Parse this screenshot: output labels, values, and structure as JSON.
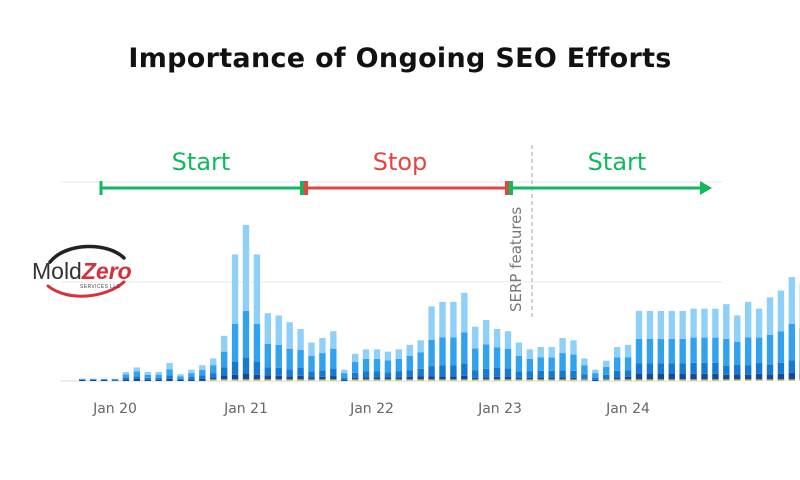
{
  "page": {
    "title": "Importance of Ongoing SEO Efforts"
  },
  "logo": {
    "word1": "Mold",
    "word2": "Zero",
    "subtitle": "SERVICES LLC"
  },
  "colors": {
    "start": "#10b95c",
    "stop": "#e5453f",
    "bar_light": "#8fd0f8",
    "bar_mid": "#32a2ec",
    "bar_dark": "#1679d2",
    "bar_navy": "#144a9c",
    "bar_yellow": "#e6c75e",
    "bar_green": "#76c45a",
    "grid": "#e5e8ec",
    "tick": "#666666"
  },
  "chart_data": {
    "type": "bar",
    "stacked": true,
    "x_tick_labels": [
      "Jan 20",
      "Jan 21",
      "Jan 22",
      "Jan 23",
      "Jan 24"
    ],
    "annotations": [
      {
        "name": "phase-start-1",
        "text": "Start",
        "kind": "start",
        "from_month": 3,
        "to_month": 27
      },
      {
        "name": "phase-stop",
        "text": "Stop",
        "kind": "stop",
        "from_month": 27,
        "to_month": 51
      },
      {
        "name": "phase-start-2",
        "text": "Start",
        "kind": "start",
        "from_month": 51,
        "to_month": 76
      }
    ],
    "event_line": {
      "text": "SERP features",
      "month": 54
    },
    "grid": true,
    "ylim": [
      0,
      100
    ],
    "series_names": [
      "light",
      "mid",
      "dark",
      "navy"
    ],
    "values": [
      1,
      1,
      1,
      1,
      4,
      6,
      4,
      4,
      8,
      3,
      5,
      7,
      10,
      20,
      56,
      69,
      56,
      30,
      29,
      26,
      23,
      17,
      19,
      22,
      5,
      12,
      14,
      14,
      13,
      14,
      16,
      18,
      33,
      35,
      35,
      39,
      24,
      27,
      23,
      22,
      17,
      14,
      15,
      15,
      19,
      18,
      10,
      5,
      9,
      15,
      16,
      31,
      31,
      31,
      31,
      31,
      32,
      32,
      32,
      34,
      29,
      35,
      32,
      37,
      40,
      46,
      43,
      45,
      46,
      49,
      52,
      52,
      55,
      55
    ],
    "splits": {
      "light": [
        0.05,
        0.05,
        0.05,
        0.1,
        0.25,
        0.3,
        0.3,
        0.3,
        0.35,
        0.3,
        0.3,
        0.3,
        0.3,
        0.35,
        0.55,
        0.55,
        0.55,
        0.45,
        0.45,
        0.45,
        0.4,
        0.35,
        0.35,
        0.35,
        0.3,
        0.3,
        0.3,
        0.3,
        0.3,
        0.3,
        0.3,
        0.3,
        0.45,
        0.45,
        0.45,
        0.45,
        0.4,
        0.4,
        0.35,
        0.35,
        0.35,
        0.3,
        0.3,
        0.3,
        0.35,
        0.35,
        0.3,
        0.3,
        0.3,
        0.3,
        0.35,
        0.4,
        0.4,
        0.4,
        0.4,
        0.4,
        0.4,
        0.4,
        0.4,
        0.45,
        0.4,
        0.45,
        0.4,
        0.45,
        0.45,
        0.45,
        0.45,
        0.45,
        0.45,
        0.45,
        0.4,
        0.4,
        0.4,
        0.4
      ],
      "mid": [
        0.2,
        0.2,
        0.2,
        0.3,
        0.35,
        0.35,
        0.35,
        0.35,
        0.35,
        0.35,
        0.35,
        0.35,
        0.35,
        0.35,
        0.3,
        0.3,
        0.3,
        0.35,
        0.35,
        0.35,
        0.35,
        0.4,
        0.4,
        0.4,
        0.4,
        0.4,
        0.4,
        0.4,
        0.4,
        0.4,
        0.4,
        0.4,
        0.35,
        0.35,
        0.35,
        0.35,
        0.4,
        0.4,
        0.4,
        0.4,
        0.4,
        0.4,
        0.4,
        0.4,
        0.4,
        0.4,
        0.4,
        0.4,
        0.4,
        0.4,
        0.35,
        0.35,
        0.35,
        0.35,
        0.35,
        0.35,
        0.35,
        0.35,
        0.35,
        0.35,
        0.35,
        0.35,
        0.35,
        0.35,
        0.35,
        0.35,
        0.35,
        0.35,
        0.35,
        0.35,
        0.4,
        0.4,
        0.4,
        0.4
      ],
      "dark": [
        0.25,
        0.25,
        0.25,
        0.25,
        0.2,
        0.2,
        0.2,
        0.2,
        0.18,
        0.2,
        0.2,
        0.2,
        0.2,
        0.18,
        0.1,
        0.1,
        0.1,
        0.12,
        0.12,
        0.12,
        0.15,
        0.15,
        0.15,
        0.15,
        0.2,
        0.18,
        0.18,
        0.18,
        0.18,
        0.18,
        0.18,
        0.18,
        0.14,
        0.14,
        0.14,
        0.14,
        0.14,
        0.14,
        0.17,
        0.17,
        0.17,
        0.2,
        0.2,
        0.2,
        0.17,
        0.17,
        0.2,
        0.2,
        0.2,
        0.2,
        0.18,
        0.15,
        0.15,
        0.15,
        0.15,
        0.15,
        0.15,
        0.15,
        0.15,
        0.12,
        0.15,
        0.12,
        0.15,
        0.12,
        0.12,
        0.12,
        0.12,
        0.12,
        0.12,
        0.12,
        0.12,
        0.12,
        0.12,
        0.12
      ],
      "navy": [
        0.5,
        0.5,
        0.5,
        0.35,
        0.2,
        0.15,
        0.15,
        0.15,
        0.12,
        0.15,
        0.15,
        0.15,
        0.15,
        0.12,
        0.05,
        0.05,
        0.05,
        0.08,
        0.08,
        0.08,
        0.1,
        0.1,
        0.1,
        0.1,
        0.1,
        0.12,
        0.12,
        0.12,
        0.12,
        0.12,
        0.12,
        0.12,
        0.06,
        0.06,
        0.06,
        0.06,
        0.06,
        0.06,
        0.08,
        0.08,
        0.08,
        0.1,
        0.1,
        0.1,
        0.08,
        0.08,
        0.1,
        0.1,
        0.1,
        0.1,
        0.12,
        0.1,
        0.1,
        0.1,
        0.1,
        0.1,
        0.1,
        0.1,
        0.1,
        0.08,
        0.1,
        0.08,
        0.1,
        0.08,
        0.08,
        0.08,
        0.08,
        0.08,
        0.08,
        0.08,
        0.08,
        0.08,
        0.08,
        0.08
      ]
    },
    "last_bar": {
      "value": 68,
      "green_top": 14
    }
  }
}
